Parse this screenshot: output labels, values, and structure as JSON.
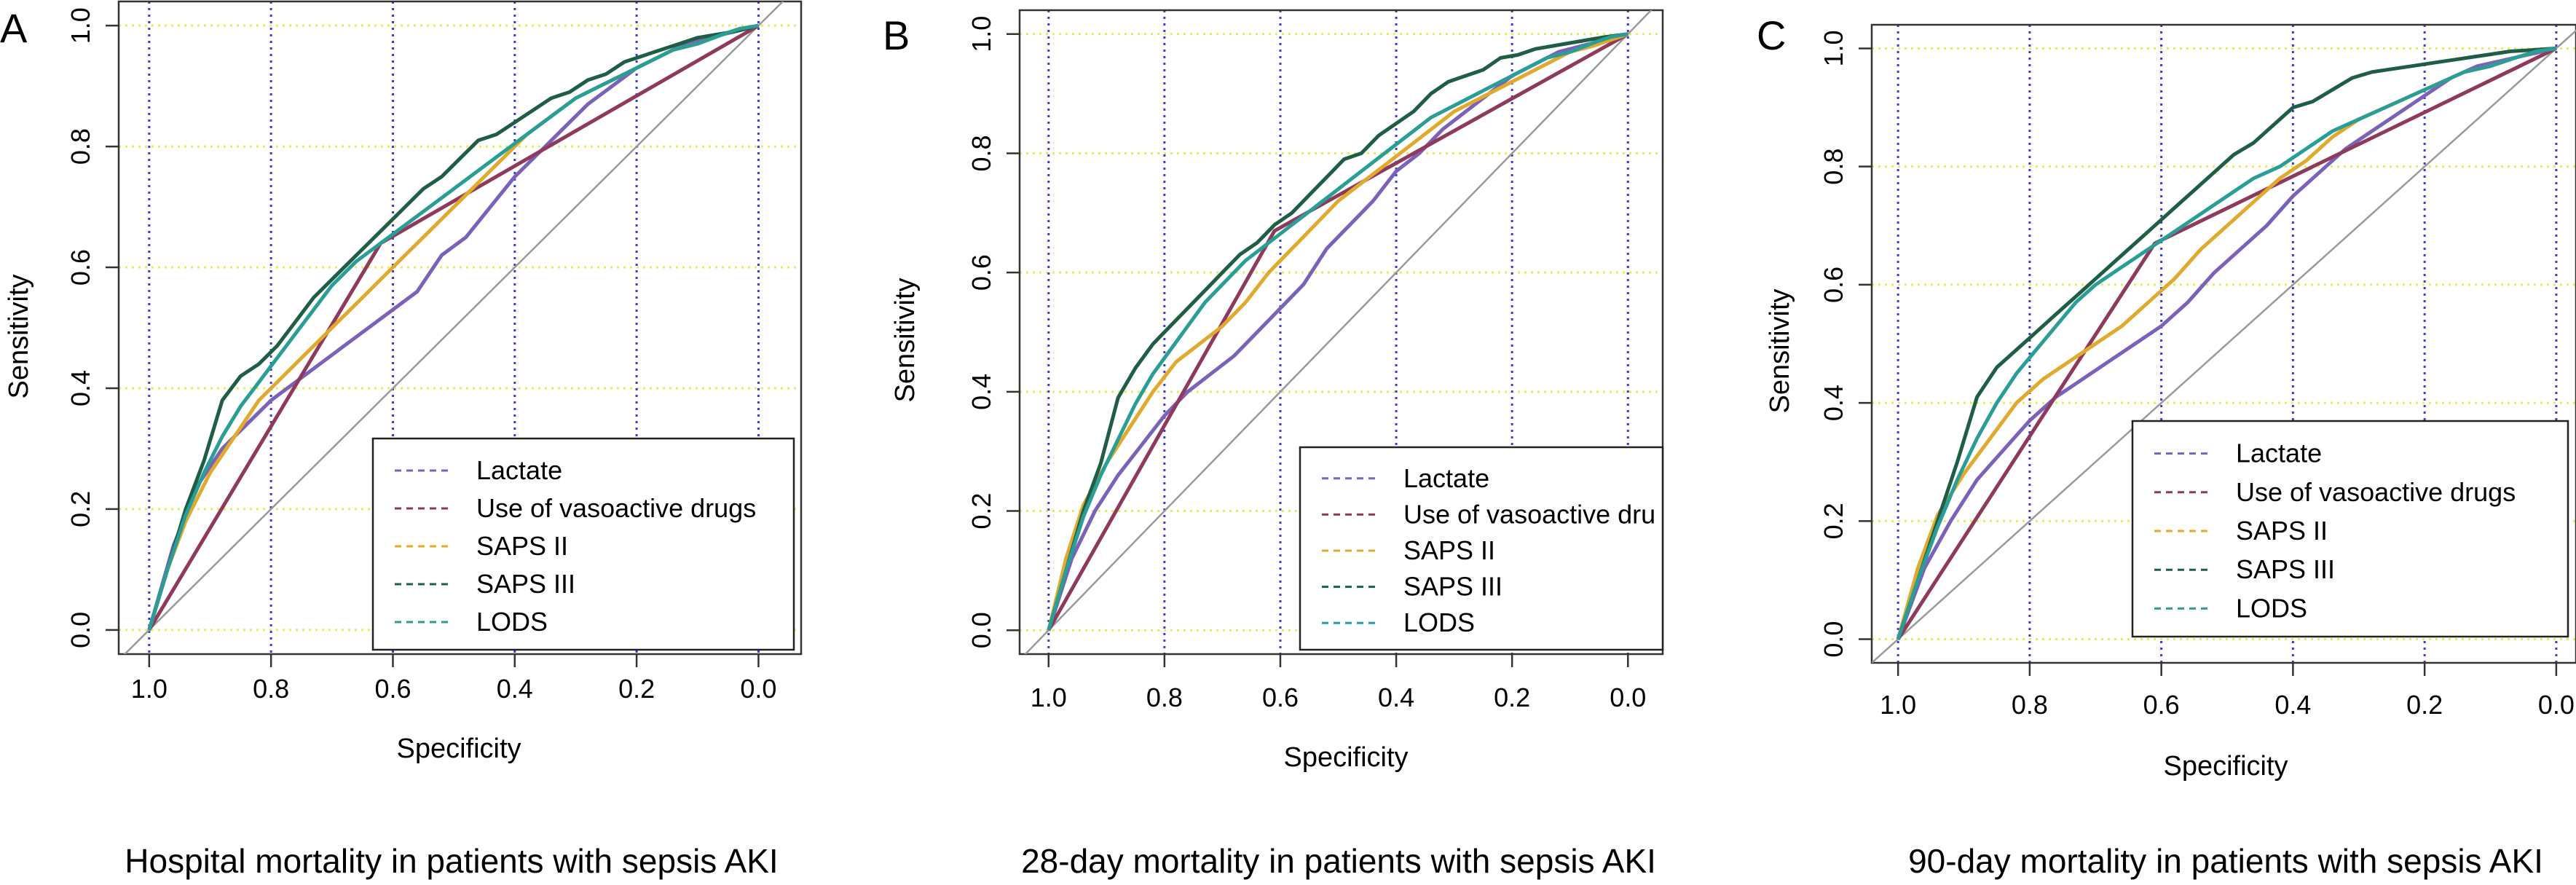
{
  "colors": {
    "lactate": "#7b62b8",
    "vasoactive": "#8e3a5c",
    "saps2": "#e0aa2e",
    "saps3": "#1f5e45",
    "lods": "#2a9e96",
    "vgrid": "#3b3bd9",
    "hgrid": "#e6ee5c",
    "diagonal": "#9a9a9a"
  },
  "chart_data": [
    {
      "type": "line",
      "panel_label": "A",
      "caption": "Hospital mortality in patients with sepsis AKI",
      "xlabel": "Specificity",
      "ylabel": "Sensitivity",
      "xlim": [
        1.05,
        -0.07
      ],
      "ylim": [
        -0.04,
        1.04
      ],
      "x_reversed": true,
      "xticks": [
        "1.0",
        "0.8",
        "0.6",
        "0.4",
        "0.2",
        "0.0"
      ],
      "yticks": [
        "0.0",
        "0.2",
        "0.4",
        "0.6",
        "0.8",
        "1.0"
      ],
      "legend": [
        "Lactate",
        "Use of vasoactive drugs",
        "SAPS II",
        "SAPS III",
        "LODS"
      ],
      "series": [
        {
          "name": "Lactate",
          "color_key": "lactate",
          "x": [
            1.0,
            0.96,
            0.92,
            0.88,
            0.84,
            0.8,
            0.76,
            0.72,
            0.68,
            0.64,
            0.6,
            0.56,
            0.52,
            0.48,
            0.44,
            0.4,
            0.36,
            0.32,
            0.28,
            0.24,
            0.2,
            0.16,
            0.12,
            0.08,
            0.04,
            0.0
          ],
          "y": [
            0.0,
            0.14,
            0.24,
            0.3,
            0.34,
            0.38,
            0.41,
            0.44,
            0.47,
            0.5,
            0.53,
            0.56,
            0.62,
            0.65,
            0.7,
            0.75,
            0.79,
            0.83,
            0.87,
            0.9,
            0.93,
            0.95,
            0.97,
            0.98,
            0.99,
            1.0
          ]
        },
        {
          "name": "Use of vasoactive drugs",
          "color_key": "vasoactive",
          "x": [
            1.0,
            0.62,
            0.0
          ],
          "y": [
            0.0,
            0.64,
            1.0
          ]
        },
        {
          "name": "SAPS II",
          "color_key": "saps2",
          "x": [
            1.0,
            0.97,
            0.94,
            0.9,
            0.86,
            0.82,
            0.78,
            0.74,
            0.7,
            0.66,
            0.62,
            0.58,
            0.54,
            0.5,
            0.46,
            0.42,
            0.38,
            0.34,
            0.3,
            0.26,
            0.22,
            0.18,
            0.14,
            0.1,
            0.06,
            0.03,
            0.0
          ],
          "y": [
            0.0,
            0.1,
            0.18,
            0.26,
            0.32,
            0.38,
            0.42,
            0.46,
            0.5,
            0.54,
            0.58,
            0.62,
            0.66,
            0.7,
            0.74,
            0.78,
            0.82,
            0.85,
            0.88,
            0.9,
            0.92,
            0.94,
            0.96,
            0.97,
            0.985,
            0.995,
            1.0
          ]
        },
        {
          "name": "SAPS III",
          "color_key": "saps3",
          "x": [
            1.0,
            0.97,
            0.94,
            0.91,
            0.88,
            0.85,
            0.82,
            0.79,
            0.76,
            0.73,
            0.7,
            0.67,
            0.64,
            0.61,
            0.58,
            0.55,
            0.52,
            0.49,
            0.46,
            0.43,
            0.4,
            0.37,
            0.34,
            0.31,
            0.28,
            0.25,
            0.22,
            0.19,
            0.16,
            0.13,
            0.1,
            0.07,
            0.04,
            0.0
          ],
          "y": [
            0.0,
            0.1,
            0.2,
            0.28,
            0.38,
            0.42,
            0.44,
            0.47,
            0.51,
            0.55,
            0.58,
            0.61,
            0.64,
            0.67,
            0.7,
            0.73,
            0.75,
            0.78,
            0.81,
            0.82,
            0.84,
            0.86,
            0.88,
            0.89,
            0.91,
            0.92,
            0.94,
            0.95,
            0.96,
            0.97,
            0.98,
            0.985,
            0.99,
            1.0
          ]
        },
        {
          "name": "LODS",
          "color_key": "lods",
          "x": [
            1.0,
            0.97,
            0.94,
            0.91,
            0.88,
            0.85,
            0.82,
            0.79,
            0.76,
            0.73,
            0.7,
            0.66,
            0.62,
            0.58,
            0.54,
            0.5,
            0.46,
            0.42,
            0.38,
            0.34,
            0.3,
            0.26,
            0.22,
            0.18,
            0.14,
            0.1,
            0.06,
            0.03,
            0.0
          ],
          "y": [
            0.0,
            0.1,
            0.19,
            0.26,
            0.32,
            0.37,
            0.41,
            0.45,
            0.49,
            0.53,
            0.57,
            0.61,
            0.64,
            0.67,
            0.7,
            0.73,
            0.76,
            0.79,
            0.82,
            0.85,
            0.88,
            0.9,
            0.92,
            0.94,
            0.96,
            0.97,
            0.985,
            0.995,
            1.0
          ]
        }
      ]
    },
    {
      "type": "line",
      "panel_label": "B",
      "caption": "28-day mortality in patients with sepsis AKI",
      "xlabel": "Specificity",
      "ylabel": "Sensitivity",
      "xlim": [
        1.05,
        -0.06
      ],
      "ylim": [
        -0.04,
        1.04
      ],
      "x_reversed": true,
      "xticks": [
        "1.0",
        "0.8",
        "0.6",
        "0.4",
        "0.2",
        "0.0"
      ],
      "yticks": [
        "0.0",
        "0.2",
        "0.4",
        "0.6",
        "0.8",
        "1.0"
      ],
      "legend": [
        "Lactate",
        "Use of vasoactive dru",
        "SAPS II",
        "SAPS III",
        "LODS"
      ],
      "series": [
        {
          "name": "Lactate",
          "color_key": "lactate",
          "x": [
            1.0,
            0.96,
            0.92,
            0.88,
            0.84,
            0.8,
            0.76,
            0.72,
            0.68,
            0.64,
            0.6,
            0.56,
            0.52,
            0.48,
            0.44,
            0.4,
            0.36,
            0.32,
            0.28,
            0.24,
            0.2,
            0.16,
            0.12,
            0.08,
            0.04,
            0.0
          ],
          "y": [
            0.0,
            0.12,
            0.2,
            0.26,
            0.31,
            0.36,
            0.4,
            0.43,
            0.46,
            0.5,
            0.54,
            0.58,
            0.64,
            0.68,
            0.72,
            0.77,
            0.8,
            0.84,
            0.87,
            0.9,
            0.93,
            0.95,
            0.97,
            0.98,
            0.99,
            1.0
          ]
        },
        {
          "name": "Use of vasoactive dru",
          "color_key": "vasoactive",
          "x": [
            1.0,
            0.61,
            0.0
          ],
          "y": [
            0.0,
            0.67,
            1.0
          ]
        },
        {
          "name": "SAPS II",
          "color_key": "saps2",
          "x": [
            1.0,
            0.97,
            0.94,
            0.9,
            0.86,
            0.82,
            0.78,
            0.74,
            0.7,
            0.66,
            0.62,
            0.58,
            0.54,
            0.5,
            0.46,
            0.42,
            0.38,
            0.34,
            0.3,
            0.26,
            0.22,
            0.18,
            0.14,
            0.1,
            0.06,
            0.03,
            0.0
          ],
          "y": [
            0.0,
            0.12,
            0.21,
            0.28,
            0.34,
            0.4,
            0.45,
            0.48,
            0.51,
            0.55,
            0.6,
            0.64,
            0.68,
            0.72,
            0.75,
            0.78,
            0.81,
            0.84,
            0.87,
            0.89,
            0.91,
            0.93,
            0.95,
            0.97,
            0.98,
            0.99,
            1.0
          ]
        },
        {
          "name": "SAPS III",
          "color_key": "saps3",
          "x": [
            1.0,
            0.97,
            0.94,
            0.91,
            0.88,
            0.85,
            0.82,
            0.79,
            0.76,
            0.73,
            0.7,
            0.67,
            0.64,
            0.61,
            0.58,
            0.55,
            0.52,
            0.49,
            0.46,
            0.43,
            0.4,
            0.37,
            0.34,
            0.31,
            0.28,
            0.25,
            0.22,
            0.19,
            0.16,
            0.13,
            0.1,
            0.07,
            0.04,
            0.0
          ],
          "y": [
            0.0,
            0.1,
            0.2,
            0.28,
            0.39,
            0.44,
            0.48,
            0.51,
            0.54,
            0.57,
            0.6,
            0.63,
            0.65,
            0.68,
            0.7,
            0.73,
            0.76,
            0.79,
            0.8,
            0.83,
            0.85,
            0.87,
            0.9,
            0.92,
            0.93,
            0.94,
            0.96,
            0.965,
            0.975,
            0.98,
            0.985,
            0.99,
            0.995,
            1.0
          ]
        },
        {
          "name": "LODS",
          "color_key": "lods",
          "x": [
            1.0,
            0.97,
            0.94,
            0.91,
            0.88,
            0.85,
            0.82,
            0.79,
            0.76,
            0.73,
            0.7,
            0.66,
            0.62,
            0.58,
            0.54,
            0.5,
            0.46,
            0.42,
            0.38,
            0.34,
            0.3,
            0.26,
            0.22,
            0.18,
            0.14,
            0.1,
            0.06,
            0.03,
            0.0
          ],
          "y": [
            0.0,
            0.1,
            0.19,
            0.26,
            0.32,
            0.38,
            0.43,
            0.47,
            0.51,
            0.55,
            0.58,
            0.62,
            0.65,
            0.68,
            0.71,
            0.74,
            0.77,
            0.8,
            0.83,
            0.86,
            0.88,
            0.9,
            0.92,
            0.94,
            0.96,
            0.97,
            0.985,
            0.995,
            1.0
          ]
        }
      ]
    },
    {
      "type": "line",
      "panel_label": "C",
      "caption": "90-day mortality in patients with sepsis AKI",
      "xlabel": "Specificity",
      "ylabel": "Sensitivity",
      "xlim": [
        1.04,
        -0.03
      ],
      "ylim": [
        -0.04,
        1.04
      ],
      "x_reversed": true,
      "xticks": [
        "1.0",
        "0.8",
        "0.6",
        "0.4",
        "0.2",
        "0.0"
      ],
      "yticks": [
        "0.0",
        "0.2",
        "0.4",
        "0.6",
        "0.8",
        "1.0"
      ],
      "legend": [
        "Lactate",
        "Use of vasoactive drugs",
        "SAPS II",
        "SAPS III",
        "LODS"
      ],
      "series": [
        {
          "name": "Lactate",
          "color_key": "lactate",
          "x": [
            1.0,
            0.96,
            0.92,
            0.88,
            0.84,
            0.8,
            0.76,
            0.72,
            0.68,
            0.64,
            0.6,
            0.56,
            0.52,
            0.48,
            0.44,
            0.4,
            0.36,
            0.32,
            0.28,
            0.24,
            0.2,
            0.16,
            0.12,
            0.08,
            0.04,
            0.0
          ],
          "y": [
            0.0,
            0.12,
            0.2,
            0.27,
            0.32,
            0.37,
            0.41,
            0.44,
            0.47,
            0.5,
            0.53,
            0.57,
            0.62,
            0.66,
            0.7,
            0.75,
            0.79,
            0.83,
            0.86,
            0.89,
            0.92,
            0.95,
            0.97,
            0.98,
            0.99,
            1.0
          ]
        },
        {
          "name": "Use of vasoactive drugs",
          "color_key": "vasoactive",
          "x": [
            1.0,
            0.61,
            0.0
          ],
          "y": [
            0.0,
            0.67,
            1.0
          ]
        },
        {
          "name": "SAPS II",
          "color_key": "saps2",
          "x": [
            1.0,
            0.97,
            0.94,
            0.9,
            0.86,
            0.82,
            0.78,
            0.74,
            0.7,
            0.66,
            0.62,
            0.58,
            0.54,
            0.5,
            0.46,
            0.42,
            0.38,
            0.34,
            0.3,
            0.26,
            0.22,
            0.18,
            0.14,
            0.1,
            0.06,
            0.03,
            0.0
          ],
          "y": [
            0.0,
            0.12,
            0.21,
            0.28,
            0.34,
            0.4,
            0.44,
            0.47,
            0.5,
            0.53,
            0.57,
            0.61,
            0.66,
            0.7,
            0.74,
            0.78,
            0.81,
            0.85,
            0.88,
            0.9,
            0.92,
            0.94,
            0.96,
            0.97,
            0.985,
            0.995,
            1.0
          ]
        },
        {
          "name": "SAPS III",
          "color_key": "saps3",
          "x": [
            1.0,
            0.97,
            0.94,
            0.91,
            0.88,
            0.85,
            0.82,
            0.79,
            0.76,
            0.73,
            0.7,
            0.67,
            0.64,
            0.61,
            0.58,
            0.55,
            0.52,
            0.49,
            0.46,
            0.43,
            0.4,
            0.37,
            0.34,
            0.31,
            0.28,
            0.25,
            0.22,
            0.19,
            0.16,
            0.13,
            0.1,
            0.07,
            0.04,
            0.0
          ],
          "y": [
            0.0,
            0.1,
            0.2,
            0.3,
            0.41,
            0.46,
            0.49,
            0.52,
            0.55,
            0.58,
            0.61,
            0.64,
            0.67,
            0.7,
            0.73,
            0.76,
            0.79,
            0.82,
            0.84,
            0.87,
            0.9,
            0.91,
            0.93,
            0.95,
            0.96,
            0.965,
            0.97,
            0.975,
            0.98,
            0.985,
            0.99,
            0.995,
            0.997,
            1.0
          ]
        },
        {
          "name": "LODS",
          "color_key": "lods",
          "x": [
            1.0,
            0.97,
            0.94,
            0.91,
            0.88,
            0.85,
            0.82,
            0.79,
            0.76,
            0.73,
            0.7,
            0.66,
            0.62,
            0.58,
            0.54,
            0.5,
            0.46,
            0.42,
            0.38,
            0.34,
            0.3,
            0.26,
            0.22,
            0.18,
            0.14,
            0.1,
            0.06,
            0.03,
            0.0
          ],
          "y": [
            0.0,
            0.1,
            0.19,
            0.27,
            0.34,
            0.4,
            0.45,
            0.49,
            0.53,
            0.57,
            0.6,
            0.63,
            0.66,
            0.69,
            0.72,
            0.75,
            0.78,
            0.8,
            0.83,
            0.86,
            0.88,
            0.9,
            0.92,
            0.94,
            0.96,
            0.97,
            0.985,
            0.995,
            1.0
          ]
        }
      ]
    }
  ]
}
